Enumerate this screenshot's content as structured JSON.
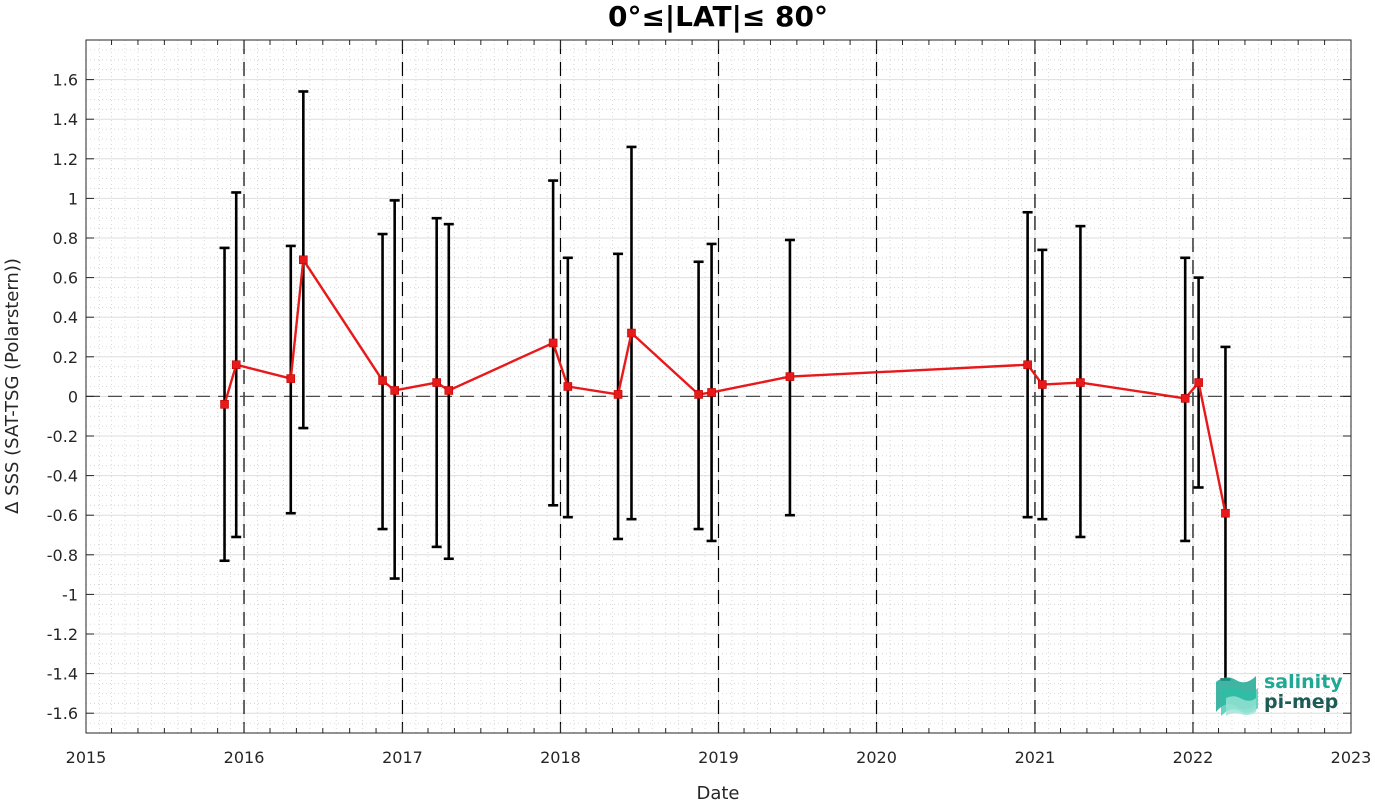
{
  "chart_data": {
    "type": "line",
    "title": "0°≤|LAT|≤ 80°",
    "xlabel": "Date",
    "ylabel": "Δ SSS (SAT-TSG (Polarstern))",
    "xlim": [
      "2015-01-01",
      "2023-01-01"
    ],
    "ylim": [
      -1.7,
      1.8
    ],
    "x_ticks": [
      "2015",
      "2016",
      "2017",
      "2018",
      "2019",
      "2020",
      "2021",
      "2022",
      "2023"
    ],
    "y_ticks": [
      "-1.6",
      "-1.4",
      "-1.2",
      "-1",
      "-0.8",
      "-0.6",
      "-0.4",
      "-0.2",
      "0",
      "0.2",
      "0.4",
      "0.6",
      "0.8",
      "1",
      "1.2",
      "1.4",
      "1.6"
    ],
    "grid": "on",
    "reference_line_y": 0,
    "vertical_dashed_lines": [
      "2016-01-01",
      "2017-01-01",
      "2018-01-01",
      "2019-01-01",
      "2020-01-01",
      "2021-01-01",
      "2022-01-01"
    ],
    "series": [
      {
        "marker": "square",
        "color": "#e8191a",
        "x": [
          "2015-11-17",
          "2015-12-14",
          "2016-04-18",
          "2016-05-17",
          "2016-11-16",
          "2016-12-14",
          "2017-03-21",
          "2017-04-18",
          "2017-12-15",
          "2018-01-18",
          "2018-05-14",
          "2018-06-14",
          "2018-11-16",
          "2018-12-16",
          "2019-06-15",
          "2020-12-15",
          "2021-01-18",
          "2021-04-16",
          "2021-12-14",
          "2022-01-14",
          "2022-03-17"
        ],
        "y": [
          -0.04,
          0.16,
          0.09,
          0.69,
          0.08,
          0.03,
          0.07,
          0.03,
          0.27,
          0.05,
          0.01,
          0.32,
          0.01,
          0.02,
          0.1,
          0.16,
          0.06,
          0.07,
          -0.01,
          0.07,
          -0.59
        ],
        "err_low": [
          -0.83,
          -0.71,
          -0.59,
          -0.16,
          -0.67,
          -0.92,
          -0.76,
          -0.82,
          -0.55,
          -0.61,
          -0.72,
          -0.62,
          -0.67,
          -0.73,
          -0.6,
          -0.61,
          -0.62,
          -0.71,
          -0.73,
          -0.46,
          -1.43
        ],
        "err_high": [
          0.75,
          1.03,
          0.76,
          1.54,
          0.82,
          0.99,
          0.9,
          0.87,
          1.09,
          0.7,
          0.72,
          1.26,
          0.68,
          0.77,
          0.79,
          0.93,
          0.74,
          0.86,
          0.7,
          0.6,
          0.25
        ]
      }
    ]
  },
  "logo": {
    "line1": "salinity",
    "line2": "pi-mep"
  },
  "colors": {
    "series": "#e8191a",
    "errorbar": "#000000",
    "grid": "#d9d9d9",
    "logo_teal": "#1fa893",
    "logo_dark": "#1d5c55"
  }
}
